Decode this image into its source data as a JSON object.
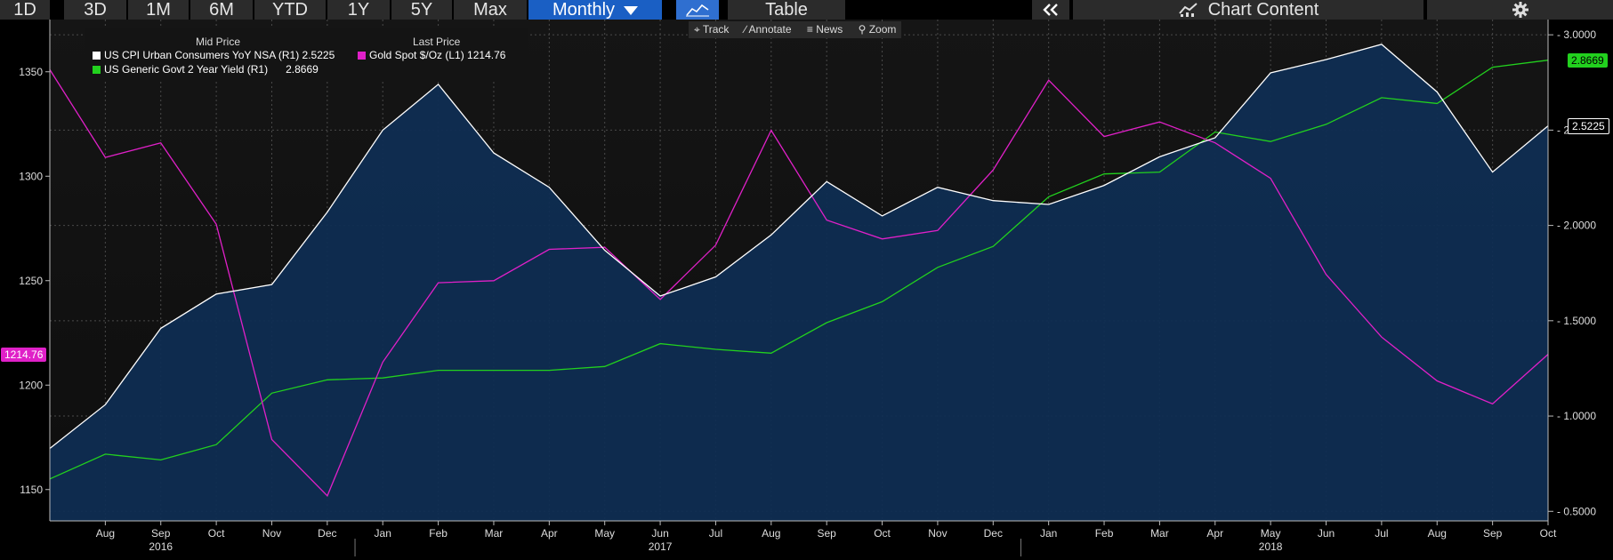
{
  "toolbar": {
    "ranges": [
      "1D",
      "3D",
      "1M",
      "6M",
      "YTD",
      "1Y",
      "5Y",
      "Max"
    ],
    "interval": "Monthly",
    "table_label": "Table",
    "chart_content_label": "Chart Content",
    "collapse_icon": "double-chevron-left-icon",
    "settings_icon": "gear-icon",
    "line_chart_icon": "line-chart-icon"
  },
  "subtools": {
    "track": "Track",
    "annotate": "Annotate",
    "news": "News",
    "zoom": "Zoom"
  },
  "legend": {
    "mid_header": "Mid Price",
    "last_header": "Last Price",
    "cpi": "US CPI Urban Consumers YoY NSA  (R1) 2.5225",
    "gold": "Gold Spot $/Oz  (L1) 1214.76",
    "yield_name": "US Generic Govt 2 Year Yield  (R1)",
    "yield_value": "2.8669"
  },
  "chart_data": {
    "type": "line",
    "title": "",
    "x": [
      "Jul",
      "Aug",
      "Sep",
      "Oct",
      "Nov",
      "Dec",
      "Jan",
      "Feb",
      "Mar",
      "Apr",
      "May",
      "Jun",
      "Jul",
      "Aug",
      "Sep",
      "Oct",
      "Nov",
      "Dec",
      "Jan",
      "Feb",
      "Mar",
      "Apr",
      "May",
      "Jun",
      "Jul",
      "Aug",
      "Sep",
      "Oct"
    ],
    "x_tick_labels": [
      "Aug",
      "Sep",
      "Oct",
      "Nov",
      "Dec",
      "Jan",
      "Feb",
      "Mar",
      "Apr",
      "May",
      "Jun",
      "Jul",
      "Aug",
      "Sep",
      "Oct",
      "Nov",
      "Dec",
      "Jan",
      "Feb",
      "Mar",
      "Apr",
      "May",
      "Jun",
      "Jul",
      "Aug",
      "Sep",
      "Oct"
    ],
    "year_labels": [
      {
        "label": "2016",
        "month": "Sep"
      },
      {
        "label": "2017",
        "month": "Jun"
      },
      {
        "label": "2018",
        "month": "May"
      }
    ],
    "series": [
      {
        "key": "cpi",
        "axis": "right",
        "color": "#ffffff",
        "fill": "#0f2d52",
        "values": [
          0.83,
          1.06,
          1.46,
          1.64,
          1.69,
          2.07,
          2.5,
          2.74,
          2.38,
          2.2,
          1.87,
          1.63,
          1.73,
          1.95,
          2.23,
          2.05,
          2.2,
          2.13,
          2.11,
          2.21,
          2.36,
          2.46,
          2.8,
          2.87,
          2.95,
          2.7,
          2.28,
          2.5225
        ]
      },
      {
        "key": "gold",
        "axis": "left",
        "color": "#e020c8",
        "values": [
          1351,
          1309,
          1316,
          1277,
          1174,
          1147,
          1211,
          1249,
          1250,
          1265,
          1266,
          1241,
          1267,
          1322,
          1279,
          1270,
          1274,
          1303,
          1346,
          1319,
          1326,
          1316,
          1299,
          1253,
          1223,
          1202,
          1191,
          1214.76
        ]
      },
      {
        "key": "yield",
        "axis": "right",
        "color": "#22d11e",
        "values": [
          0.67,
          0.8,
          0.77,
          0.85,
          1.12,
          1.19,
          1.2,
          1.24,
          1.24,
          1.24,
          1.26,
          1.38,
          1.35,
          1.33,
          1.49,
          1.6,
          1.78,
          1.89,
          2.15,
          2.27,
          2.28,
          2.49,
          2.44,
          2.53,
          2.67,
          2.64,
          2.83,
          2.8669
        ]
      }
    ],
    "left_axis": {
      "min": 1135,
      "max": 1375,
      "ticks": [
        1150,
        1200,
        1250,
        1300,
        1350
      ]
    },
    "right_axis": {
      "min": 0.45,
      "max": 3.08,
      "ticks": [
        "0.5000",
        "1.0000",
        "1.5000",
        "2.0000",
        "2.5000",
        "3.0000"
      ]
    },
    "last_value_tags": {
      "gold": "1214.76",
      "cpi": "2.5225",
      "yield": "2.8669"
    },
    "grid": true,
    "legend_position": "top-left"
  },
  "colors": {
    "background": "#000000",
    "plot_top": "#141414",
    "toolbar": "#2b2b2b",
    "active": "#1a5fc4"
  }
}
